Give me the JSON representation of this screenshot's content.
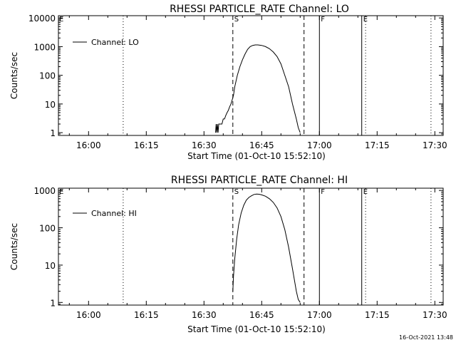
{
  "timestamp": "16-Oct-2021 13:48",
  "chart_data": [
    {
      "type": "line",
      "title": "RHESSI PARTICLE_RATE Channel: LO",
      "xlabel": "Start Time (01-Oct-10 15:52:10)",
      "ylabel": "Counts/sec",
      "y_scale": "log",
      "ylim": [
        0.8,
        12000
      ],
      "xlim": [
        "15:52:10",
        "17:32:10"
      ],
      "x_ticks": [
        "16:00",
        "16:15",
        "16:30",
        "16:45",
        "17:00",
        "17:15",
        "17:30"
      ],
      "y_ticks": [
        "1",
        "10",
        "100",
        "1000",
        "10000"
      ],
      "legend": {
        "position": "top-left",
        "entries": [
          "Channel: LO"
        ]
      },
      "markers": [
        {
          "label": "",
          "time": "16:09:00",
          "style": "dotted"
        },
        {
          "label": "S",
          "time": "16:37:30",
          "style": "dashed"
        },
        {
          "label": "",
          "time": "16:56:00",
          "style": "dashed"
        },
        {
          "label": "F",
          "time": "17:00:00",
          "style": "solid"
        },
        {
          "label": "E",
          "time": "17:11:00",
          "style": "solid"
        },
        {
          "label": "",
          "time": "17:12:00",
          "style": "dotted"
        },
        {
          "label": "",
          "time": "17:29:00",
          "style": "dotted"
        }
      ],
      "corner_label": "E",
      "series": [
        {
          "name": "Channel: LO",
          "x": [
            "16:33:00",
            "16:33:10",
            "16:33:20",
            "16:33:30",
            "16:33:40",
            "16:33:50",
            "16:34:00",
            "16:34:20",
            "16:34:40",
            "16:35:00",
            "16:35:20",
            "16:35:40",
            "16:36:00",
            "16:36:20",
            "16:36:40",
            "16:37:00",
            "16:37:20",
            "16:37:40",
            "16:38:00",
            "16:38:40",
            "16:39:20",
            "16:40:00",
            "16:40:40",
            "16:41:20",
            "16:42:00",
            "16:42:40",
            "16:43:20",
            "16:44:00",
            "16:45:00",
            "16:46:00",
            "16:47:00",
            "16:48:00",
            "16:49:00",
            "16:50:00",
            "16:51:00",
            "16:52:00",
            "16:53:00",
            "16:54:00",
            "16:54:30",
            "16:55:00"
          ],
          "values": [
            1,
            2,
            1,
            2,
            1,
            2,
            2,
            2,
            2,
            3,
            3,
            4,
            5,
            6,
            8,
            10,
            14,
            20,
            40,
            100,
            200,
            350,
            550,
            800,
            1000,
            1100,
            1150,
            1150,
            1100,
            1000,
            850,
            650,
            450,
            250,
            100,
            40,
            10,
            3,
            1.5,
            1
          ]
        }
      ]
    },
    {
      "type": "line",
      "title": "RHESSI PARTICLE_RATE Channel: HI",
      "xlabel": "Start Time (01-Oct-10 15:52:10)",
      "ylabel": "Counts/sec",
      "y_scale": "log",
      "ylim": [
        0.85,
        1150
      ],
      "xlim": [
        "15:52:10",
        "17:32:10"
      ],
      "x_ticks": [
        "16:00",
        "16:15",
        "16:30",
        "16:45",
        "17:00",
        "17:15",
        "17:30"
      ],
      "y_ticks": [
        "1",
        "10",
        "100",
        "1000"
      ],
      "legend": {
        "position": "top-left",
        "entries": [
          "Channel: HI"
        ]
      },
      "markers": [
        {
          "label": "",
          "time": "16:09:00",
          "style": "dotted"
        },
        {
          "label": "S",
          "time": "16:37:30",
          "style": "dashed"
        },
        {
          "label": "",
          "time": "16:56:00",
          "style": "dashed"
        },
        {
          "label": "F",
          "time": "17:00:00",
          "style": "solid"
        },
        {
          "label": "E",
          "time": "17:11:00",
          "style": "solid"
        },
        {
          "label": "",
          "time": "17:12:00",
          "style": "dotted"
        },
        {
          "label": "",
          "time": "17:29:00",
          "style": "dotted"
        }
      ],
      "corner_label": "E",
      "series": [
        {
          "name": "Channel: HI",
          "x": [
            "16:37:30",
            "16:37:40",
            "16:38:00",
            "16:38:30",
            "16:39:00",
            "16:39:40",
            "16:40:20",
            "16:41:00",
            "16:41:40",
            "16:42:20",
            "16:43:00",
            "16:43:40",
            "16:44:20",
            "16:45:00",
            "16:46:00",
            "16:47:00",
            "16:48:00",
            "16:49:00",
            "16:50:00",
            "16:51:00",
            "16:52:00",
            "16:53:00",
            "16:54:00",
            "16:54:30",
            "16:55:00"
          ],
          "values": [
            2,
            5,
            15,
            50,
            120,
            250,
            400,
            550,
            650,
            720,
            780,
            800,
            790,
            760,
            700,
            600,
            480,
            340,
            200,
            90,
            30,
            8,
            2,
            1.2,
            1
          ]
        }
      ]
    }
  ]
}
